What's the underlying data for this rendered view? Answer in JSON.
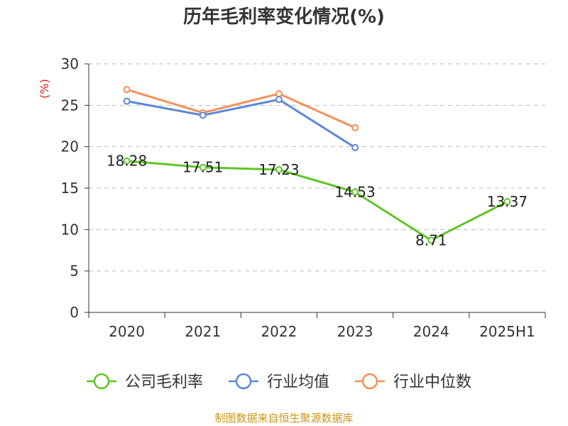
{
  "chart_data": {
    "type": "line",
    "title": "历年毛利率变化情况(%)",
    "ylabel": "(%)",
    "categories": [
      "2020",
      "2021",
      "2022",
      "2023",
      "2024",
      "2025H1"
    ],
    "ylim": [
      0,
      30
    ],
    "yticks": [
      0,
      5,
      10,
      15,
      20,
      25,
      30
    ],
    "grid": true,
    "legend_position": "bottom",
    "series": [
      {
        "name": "公司毛利率",
        "color": "#5ec626",
        "values": [
          18.28,
          17.51,
          17.23,
          14.53,
          8.71,
          13.37
        ],
        "labels": [
          "18.28",
          "17.51",
          "17.23",
          "14.53",
          "8.71",
          "13.37"
        ]
      },
      {
        "name": "行业均值",
        "color": "#5b87d6",
        "values": [
          25.5,
          23.8,
          25.7,
          19.9,
          null,
          null
        ]
      },
      {
        "name": "行业中位数",
        "color": "#f5905a",
        "values": [
          26.9,
          24.1,
          26.4,
          22.3,
          null,
          null
        ]
      }
    ]
  },
  "footer": {
    "source": "制图数据来自恒生聚源数据库"
  }
}
